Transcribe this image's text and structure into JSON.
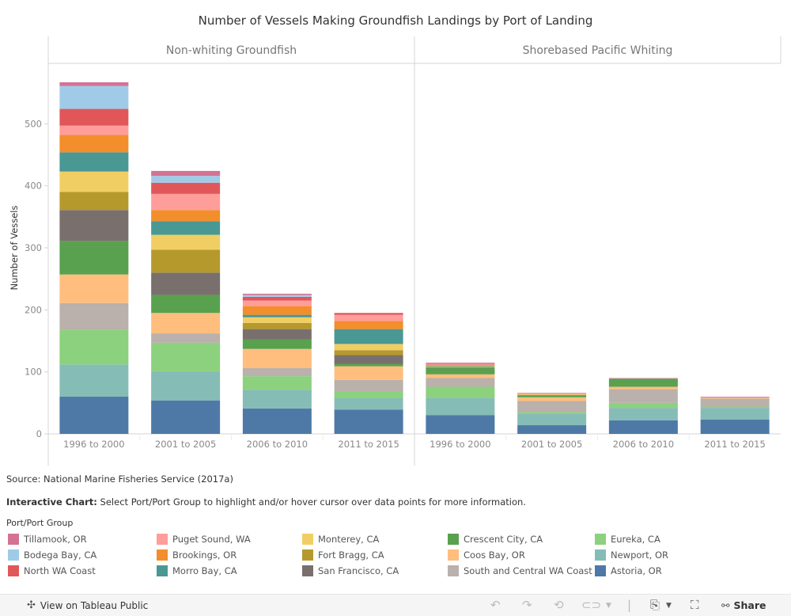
{
  "title": "Number of Vessels Making Groundfish Landings by Port of Landing",
  "source": "Source: National Marine Fisheries Service (2017a)",
  "note": {
    "bold": "Interactive Chart:",
    "text": " Select Port/Port Group to highlight and/or hover cursor over data points for more information."
  },
  "legend_title": "Port/Port Group",
  "footer": {
    "tableau_link": "View on Tableau Public",
    "tableau_icon": "tableau-logo-icon",
    "undo_icon": "undo-icon",
    "redo_icon": "redo-icon",
    "revert_icon": "revert-icon",
    "refresh_icon": "refresh-icon",
    "download_icon": "download-icon",
    "fullscreen_icon": "fullscreen-icon",
    "share_icon": "share-icon",
    "share_label": "Share"
  },
  "chart_data": {
    "type": "bar",
    "stacked": true,
    "title": "Number of Vessels Making Groundfish Landings by Port of Landing",
    "ylabel": "Number of Vessels",
    "xlabel": "",
    "ylim": [
      0,
      580
    ],
    "yticks": [
      0,
      100,
      200,
      300,
      400,
      500
    ],
    "grid": false,
    "legend_position": "bottom",
    "panels": [
      {
        "name": "Non-whiting Groundfish",
        "categories": [
          "1996 to 2000",
          "2001 to 2005",
          "2006 to 2010",
          "2011 to 2015"
        ]
      },
      {
        "name": "Shorebased Pacific Whiting",
        "categories": [
          "1996 to 2000",
          "2001 to 2005",
          "2006 to 2010",
          "2011 to 2015"
        ]
      }
    ],
    "series": [
      {
        "name": "Astoria, OR",
        "color": "#4e79a7",
        "values": [
          [
            60,
            54,
            41,
            39
          ],
          [
            30,
            14,
            22,
            23
          ]
        ]
      },
      {
        "name": "Newport, OR",
        "color": "#86bcb6",
        "values": [
          [
            52,
            47,
            30,
            19
          ],
          [
            28,
            18,
            20,
            19
          ]
        ]
      },
      {
        "name": "Eureka, CA",
        "color": "#8cd17d",
        "values": [
          [
            56,
            46,
            22,
            11
          ],
          [
            18,
            3,
            8,
            2
          ]
        ]
      },
      {
        "name": "South and Central WA Coast",
        "color": "#bab0ac",
        "values": [
          [
            43,
            15,
            13,
            18
          ],
          [
            14,
            18,
            22,
            13
          ]
        ]
      },
      {
        "name": "Coos Bay, OR",
        "color": "#ffbe7d",
        "values": [
          [
            46,
            33,
            31,
            22
          ],
          [
            6,
            6,
            4,
            1
          ]
        ]
      },
      {
        "name": "Crescent City, CA",
        "color": "#59a14f",
        "values": [
          [
            54,
            29,
            15,
            4
          ],
          [
            10,
            3,
            13,
            0
          ]
        ]
      },
      {
        "name": "San Francisco, CA",
        "color": "#79706e",
        "values": [
          [
            50,
            36,
            17,
            14
          ],
          [
            1,
            0,
            0,
            0
          ]
        ]
      },
      {
        "name": "Fort Bragg, CA",
        "color": "#b6992d",
        "values": [
          [
            29,
            37,
            10,
            8
          ],
          [
            1,
            1,
            0,
            0
          ]
        ]
      },
      {
        "name": "Monterey, CA",
        "color": "#f1ce63",
        "values": [
          [
            33,
            24,
            9,
            10
          ],
          [
            1,
            1,
            0,
            0
          ]
        ]
      },
      {
        "name": "Morro Bay, CA",
        "color": "#499894",
        "values": [
          [
            31,
            22,
            4,
            24
          ],
          [
            1,
            0,
            0,
            0
          ]
        ]
      },
      {
        "name": "Brookings, OR",
        "color": "#f28e2b",
        "values": [
          [
            28,
            18,
            14,
            13
          ],
          [
            1,
            0,
            0,
            0
          ]
        ]
      },
      {
        "name": "Puget Sound, WA",
        "color": "#ff9d9a",
        "values": [
          [
            15,
            26,
            9,
            10
          ],
          [
            1,
            1,
            0,
            1
          ]
        ]
      },
      {
        "name": "North WA Coast",
        "color": "#e15759",
        "values": [
          [
            27,
            18,
            6,
            3
          ],
          [
            1,
            0,
            0,
            0
          ]
        ]
      },
      {
        "name": "Bodega Bay, CA",
        "color": "#a0cbe8",
        "values": [
          [
            37,
            11,
            3,
            0
          ],
          [
            1,
            0,
            0,
            0
          ]
        ]
      },
      {
        "name": "Tillamook, OR",
        "color": "#d37295",
        "values": [
          [
            6,
            8,
            2,
            0
          ],
          [
            1,
            1,
            1,
            1
          ]
        ]
      }
    ],
    "legend_order": [
      "Tillamook, OR",
      "Bodega Bay, CA",
      "North WA Coast",
      "Puget Sound, WA",
      "Brookings, OR",
      "Morro Bay, CA",
      "Monterey, CA",
      "Fort Bragg, CA",
      "San Francisco, CA",
      "Crescent City, CA",
      "Coos Bay, OR",
      "South and Central WA Coast",
      "Eureka, CA",
      "Newport, OR",
      "Astoria, OR"
    ]
  }
}
